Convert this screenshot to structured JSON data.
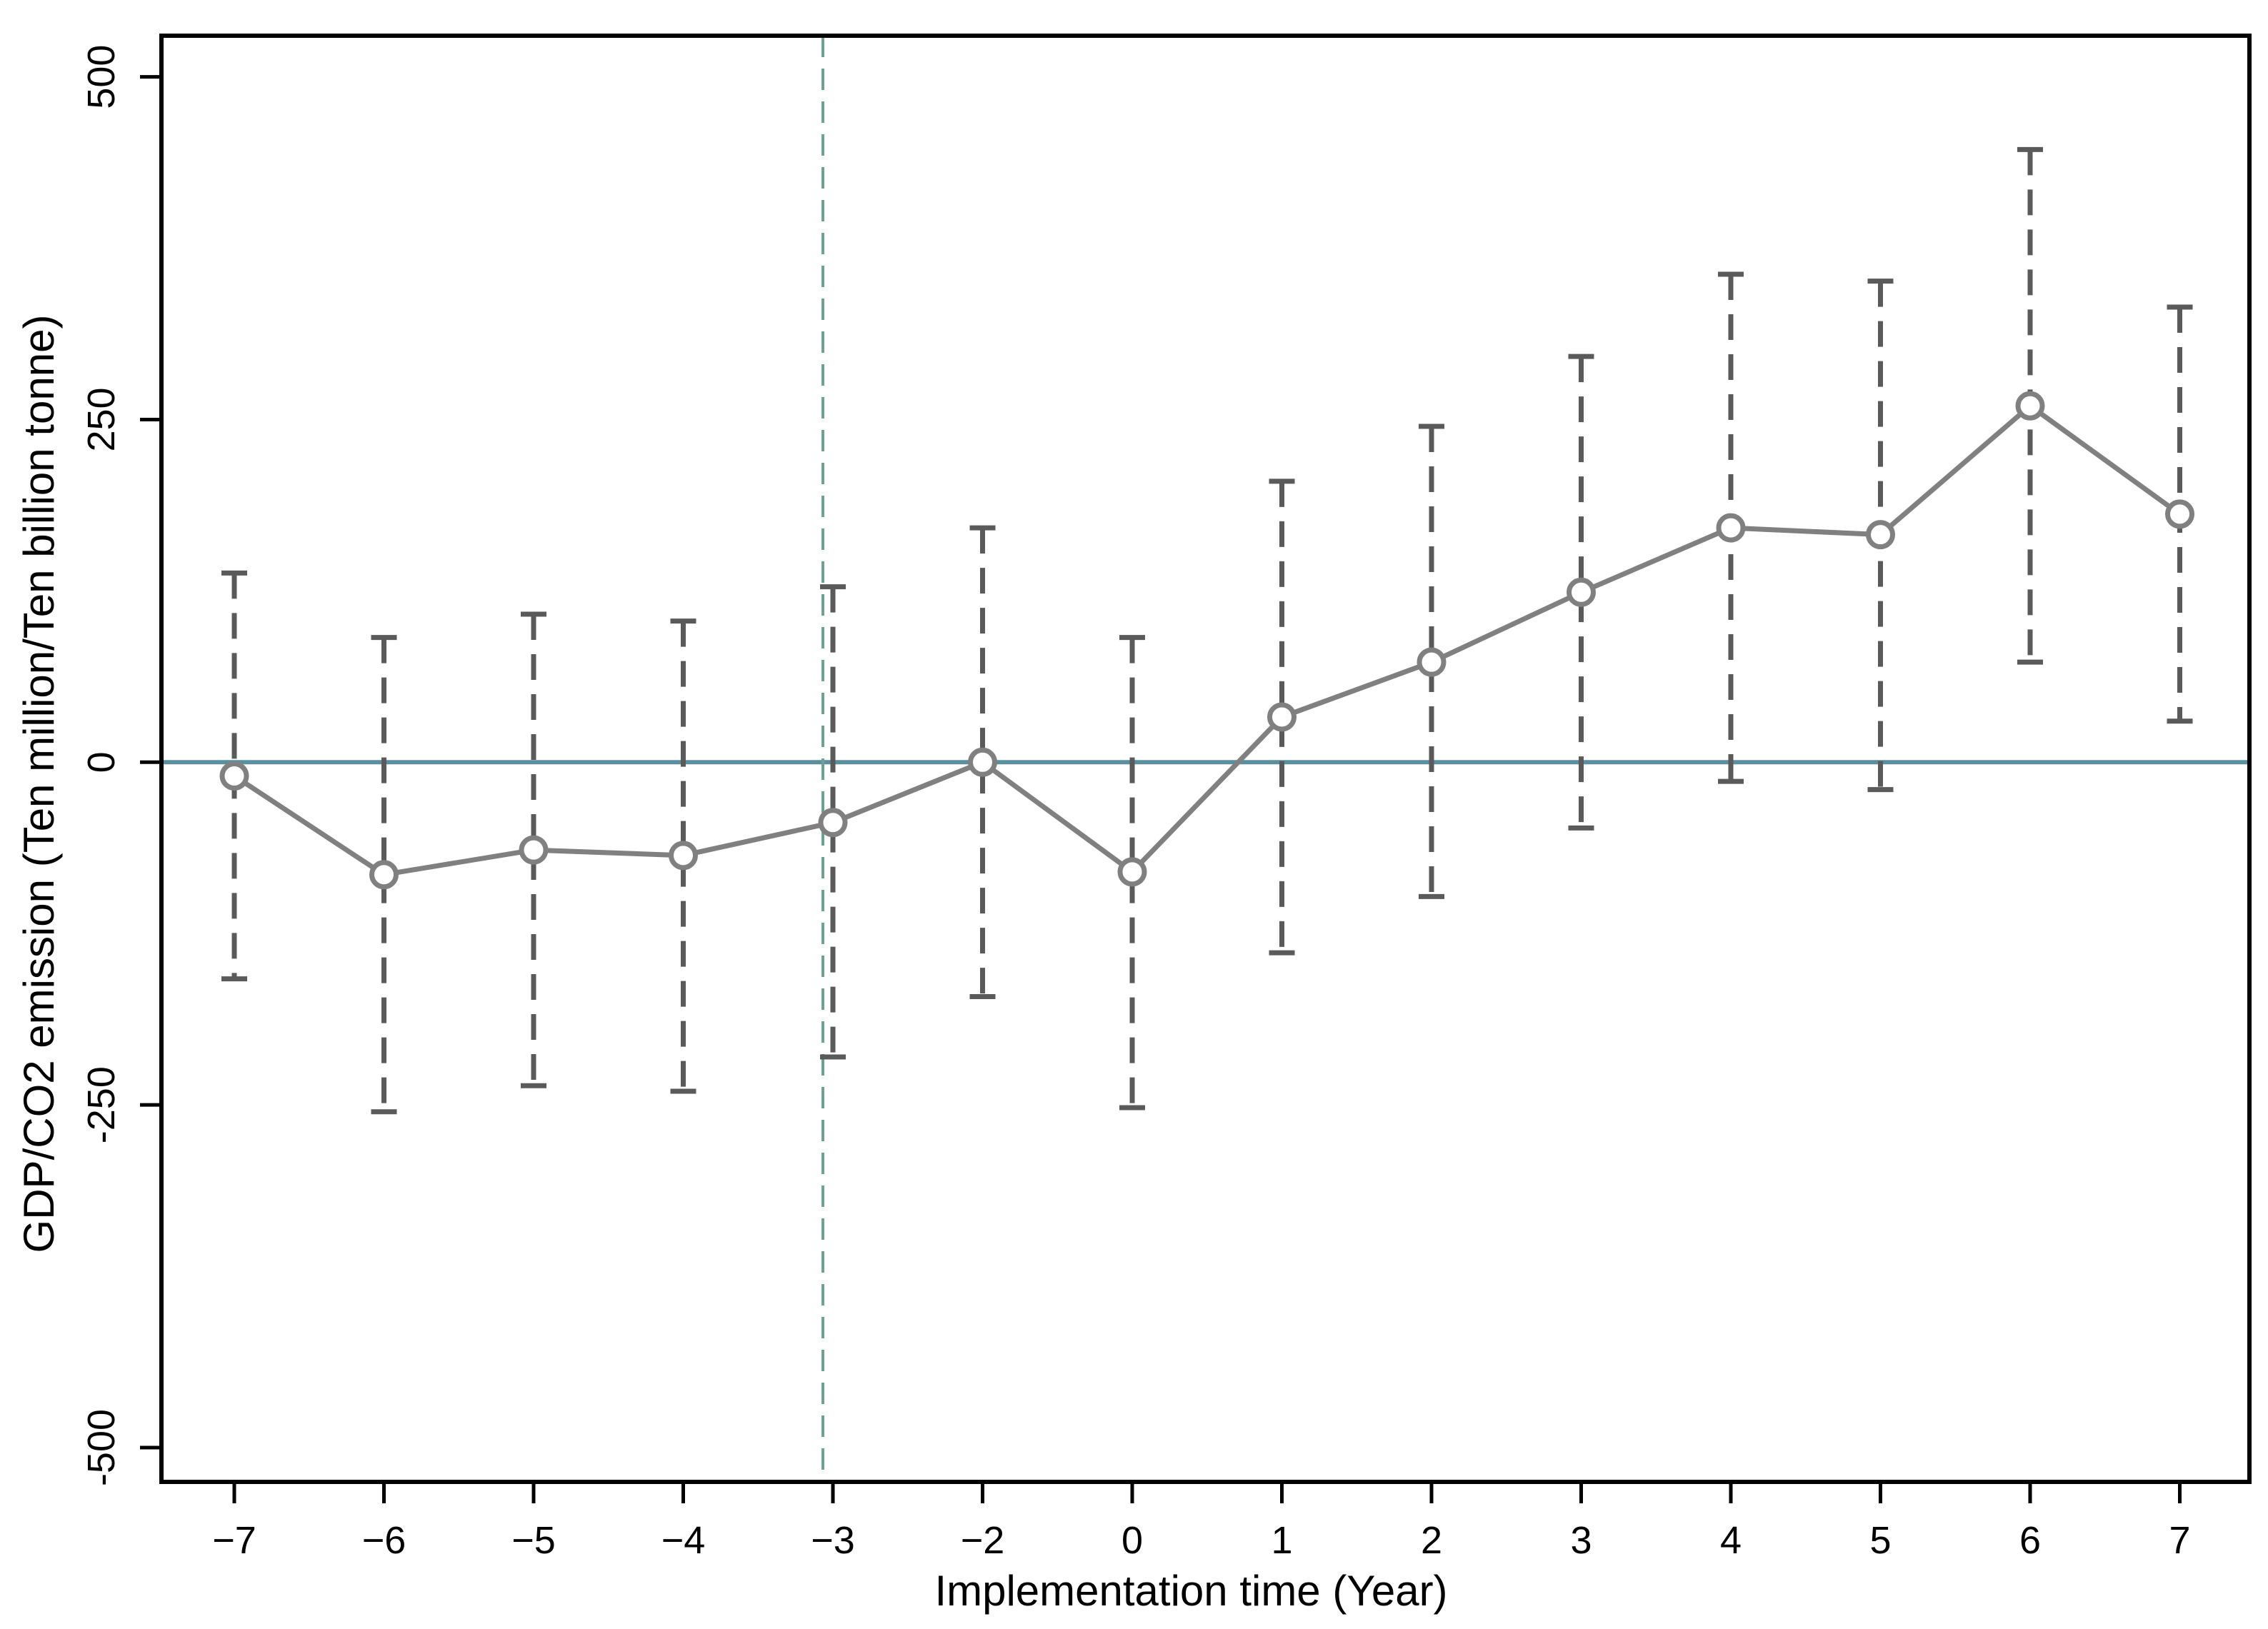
{
  "chart_data": {
    "type": "line",
    "title": "",
    "xlabel": "Implementation time (Year)",
    "ylabel": "GDP/CO2 emission (Ten million/Ten billion tonne)",
    "categories": [
      "−7",
      "−6",
      "−5",
      "−4",
      "−3",
      "−2",
      "0",
      "1",
      "2",
      "3",
      "4",
      "5",
      "6",
      "7"
    ],
    "x": [
      -7,
      -6,
      -5,
      -4,
      -3,
      -2,
      0,
      1,
      2,
      3,
      4,
      5,
      6,
      7
    ],
    "series": [
      {
        "values": [
          -10,
          -82,
          -64,
          -68,
          -44,
          0,
          -80,
          33,
          73,
          124,
          171,
          166,
          260,
          181
        ],
        "ci_upper": [
          138,
          91,
          108,
          103,
          128,
          171,
          91,
          205,
          245,
          296,
          356,
          351,
          447,
          332
        ],
        "ci_lower": [
          -158,
          -255,
          -236,
          -240,
          -215,
          -171,
          -252,
          -139,
          -98,
          -48,
          -14,
          -20,
          73,
          30
        ]
      }
    ],
    "ylim": [
      -525,
      530
    ],
    "yticks": [
      -500,
      -250,
      0,
      250,
      500
    ],
    "ytick_labels": [
      "-500",
      "-250",
      "0",
      "250",
      "500"
    ],
    "reference_lines": {
      "horizontal_y": 0,
      "vertical_category": "−3"
    },
    "colors": {
      "series": "#808080",
      "error_bars": "#5a5a5a",
      "zero_line": "#5a8fa0",
      "vertical_line": "#6f9f95",
      "axes": "#000000"
    },
    "grid": false,
    "legend": "none"
  }
}
